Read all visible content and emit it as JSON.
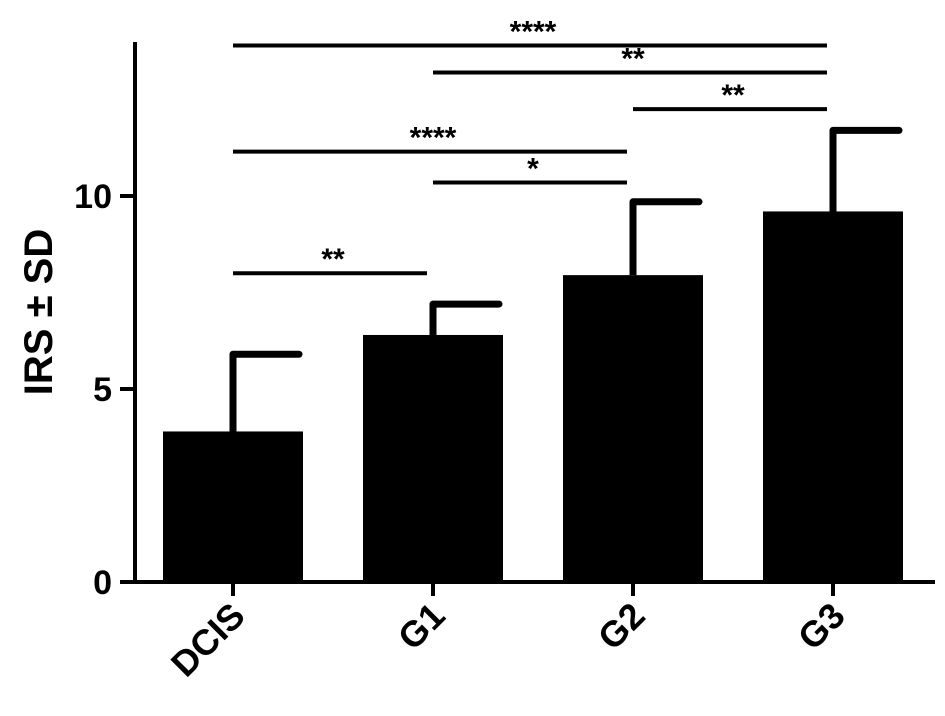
{
  "chart_data": {
    "type": "bar",
    "title": "",
    "xlabel": "",
    "ylabel": "IRS ± SD",
    "categories": [
      "DCIS",
      "G1",
      "G2",
      "G3"
    ],
    "values": [
      3.9,
      6.4,
      7.95,
      9.6
    ],
    "errors": [
      2.0,
      0.8,
      1.9,
      2.1
    ],
    "ylim": [
      0,
      14
    ],
    "yticks": [
      0,
      5,
      10
    ],
    "ytick_labels": [
      "0",
      "5",
      "10"
    ],
    "grid": false,
    "bar_color": "#000000",
    "significance": [
      {
        "from": "DCIS",
        "to": "G1",
        "label": "**",
        "level": 8.0
      },
      {
        "from": "G1",
        "to": "G2",
        "label": "*",
        "level": 10.35
      },
      {
        "from": "DCIS",
        "to": "G2",
        "label": "****",
        "level": 11.15
      },
      {
        "from": "G2",
        "to": "G3",
        "label": "**",
        "level": 12.25
      },
      {
        "from": "G1",
        "to": "G3",
        "label": "**",
        "level": 13.2
      },
      {
        "from": "DCIS",
        "to": "G3",
        "label": "****",
        "level": 13.9
      }
    ]
  }
}
